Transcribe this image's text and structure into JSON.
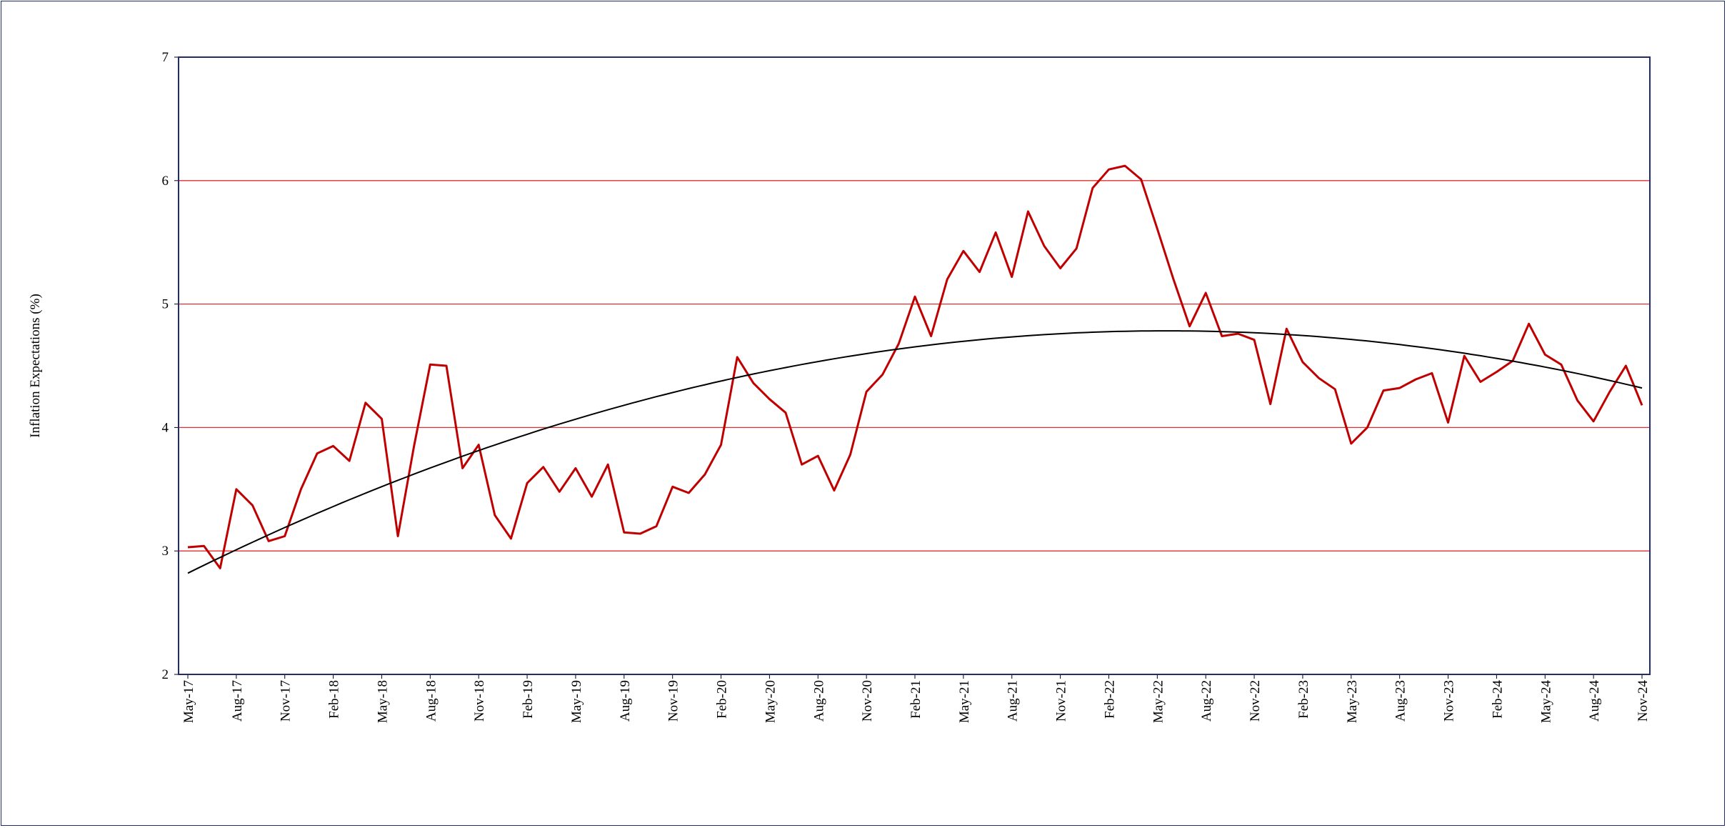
{
  "chart_data": {
    "type": "line",
    "title": "",
    "xlabel": "",
    "ylabel": "Inflation Expectations (%)",
    "ylim": [
      2,
      7
    ],
    "yticks": [
      2,
      3,
      4,
      5,
      6,
      7
    ],
    "grid": "horizontal",
    "x_tick_labels": [
      "May-17",
      "Aug-17",
      "Nov-17",
      "Feb-18",
      "May-18",
      "Aug-18",
      "Nov-18",
      "Feb-19",
      "May-19",
      "Aug-19",
      "Nov-19",
      "Feb-20",
      "May-20",
      "Aug-20",
      "Nov-20",
      "Feb-21",
      "May-21",
      "Aug-21",
      "Nov-21",
      "Feb-22",
      "May-22",
      "Aug-22",
      "Nov-22",
      "Feb-23",
      "May-23",
      "Aug-23",
      "Nov-23",
      "Feb-24",
      "May-24",
      "Aug-24",
      "Nov-24"
    ],
    "x": [
      "May-17",
      "Jun-17",
      "Jul-17",
      "Aug-17",
      "Sep-17",
      "Oct-17",
      "Nov-17",
      "Dec-17",
      "Jan-18",
      "Feb-18",
      "Mar-18",
      "Apr-18",
      "May-18",
      "Jun-18",
      "Jul-18",
      "Aug-18",
      "Sep-18",
      "Oct-18",
      "Nov-18",
      "Dec-18",
      "Jan-19",
      "Feb-19",
      "Mar-19",
      "Apr-19",
      "May-19",
      "Jun-19",
      "Jul-19",
      "Aug-19",
      "Sep-19",
      "Oct-19",
      "Nov-19",
      "Dec-19",
      "Jan-20",
      "Feb-20",
      "Mar-20",
      "Apr-20",
      "May-20",
      "Jun-20",
      "Jul-20",
      "Aug-20",
      "Sep-20",
      "Oct-20",
      "Nov-20",
      "Dec-20",
      "Jan-21",
      "Feb-21",
      "Mar-21",
      "Apr-21",
      "May-21",
      "Jun-21",
      "Jul-21",
      "Aug-21",
      "Sep-21",
      "Oct-21",
      "Nov-21",
      "Dec-21",
      "Jan-22",
      "Feb-22",
      "Mar-22",
      "Apr-22",
      "May-22",
      "Jun-22",
      "Jul-22",
      "Aug-22",
      "Sep-22",
      "Oct-22",
      "Nov-22",
      "Dec-22",
      "Jan-23",
      "Feb-23",
      "Mar-23",
      "Apr-23",
      "May-23",
      "Jun-23",
      "Jul-23",
      "Aug-23",
      "Sep-23",
      "Oct-23",
      "Nov-23",
      "Dec-23",
      "Jan-24",
      "Feb-24",
      "Mar-24",
      "Apr-24",
      "May-24",
      "Jun-24",
      "Jul-24",
      "Aug-24",
      "Sep-24",
      "Oct-24",
      "Nov-24"
    ],
    "series": [
      {
        "kind": "line",
        "color": "#c00000",
        "values": [
          3.03,
          3.04,
          2.86,
          3.5,
          3.37,
          3.08,
          3.12,
          3.5,
          3.79,
          3.85,
          3.73,
          4.2,
          4.07,
          3.12,
          3.85,
          4.51,
          4.5,
          3.67,
          3.86,
          3.29,
          3.1,
          3.55,
          3.68,
          3.48,
          3.67,
          3.44,
          3.7,
          3.15,
          3.14,
          3.2,
          3.52,
          3.47,
          3.62,
          3.86,
          4.57,
          4.36,
          4.23,
          4.12,
          3.7,
          3.77,
          3.49,
          3.78,
          4.29,
          4.43,
          4.68,
          5.06,
          4.74,
          5.2,
          5.43,
          5.26,
          5.58,
          5.22,
          5.75,
          5.47,
          5.29,
          5.45,
          5.94,
          6.09,
          6.12,
          6.01,
          5.61,
          5.2,
          4.82,
          5.09,
          4.74,
          4.76,
          4.71,
          4.19,
          4.8,
          4.53,
          4.4,
          4.31,
          3.87,
          4.0,
          4.3,
          4.32,
          4.39,
          4.44,
          4.04,
          4.58,
          4.37,
          4.45,
          4.54,
          4.84,
          4.59,
          4.51,
          4.22,
          4.05,
          4.29,
          4.5,
          4.18
        ]
      },
      {
        "kind": "trendline",
        "color": "#000000",
        "curve": "quadratic",
        "points": [
          [
            0,
            2.82
          ],
          [
            54,
            4.76
          ],
          [
            90,
            4.32
          ]
        ]
      }
    ]
  }
}
